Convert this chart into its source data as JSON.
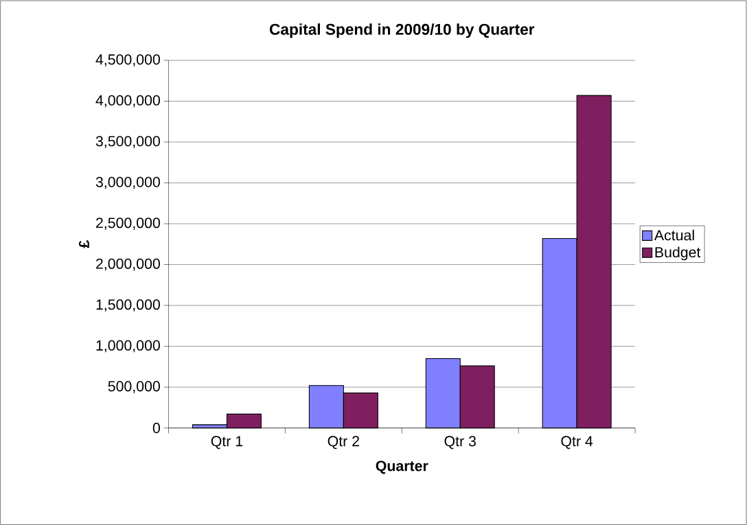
{
  "chart_data": {
    "type": "bar",
    "title": "Capital Spend in 2009/10 by Quarter",
    "xlabel": "Quarter",
    "ylabel": "£",
    "categories": [
      "Qtr 1",
      "Qtr 2",
      "Qtr 3",
      "Qtr 4"
    ],
    "series": [
      {
        "name": "Actual",
        "color": "#8080ff",
        "values": [
          40000,
          520000,
          850000,
          2320000
        ]
      },
      {
        "name": "Budget",
        "color": "#7f1f5f",
        "values": [
          170000,
          430000,
          760000,
          4070000
        ]
      }
    ],
    "ylim": [
      0,
      4500000
    ],
    "yticks": [
      0,
      {
        "value": 500000,
        "label": "500,000"
      },
      {
        "value": 1000000,
        "label": "1,000,000"
      },
      {
        "value": 1500000,
        "label": "1,500,000"
      },
      {
        "value": 2000000,
        "label": "2,000,000"
      },
      {
        "value": 2500000,
        "label": "2,500,000"
      },
      {
        "value": 3000000,
        "label": "3,000,000"
      },
      {
        "value": 3500000,
        "label": "3,500,000"
      },
      {
        "value": 4000000,
        "label": "4,000,000"
      },
      {
        "value": 4500000,
        "label": "4,500,000"
      }
    ],
    "grid": "y",
    "legend": "right"
  }
}
